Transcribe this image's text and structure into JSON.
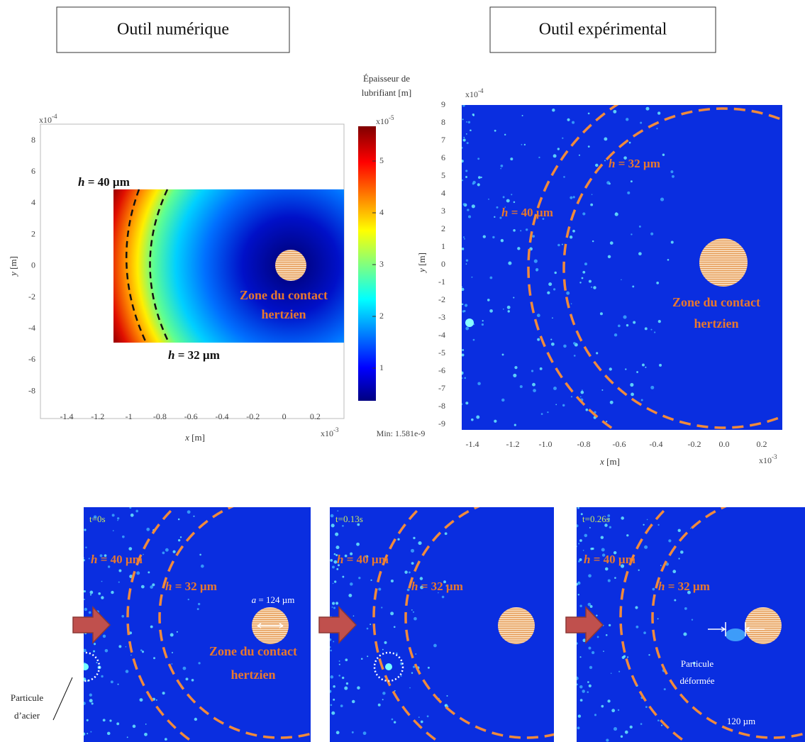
{
  "headers": {
    "numerical": "Outil numérique",
    "experimental": "Outil expérimental"
  },
  "numerical_plot": {
    "y_scale": {
      "base": "x10",
      "exp": "-4"
    },
    "x_scale": {
      "base": "x10",
      "exp": "-3"
    },
    "yticks": [
      "8",
      "6",
      "4",
      "2",
      "0",
      "-2",
      "-4",
      "-6",
      "-8"
    ],
    "xticks": [
      "-1.4",
      "-1.2",
      "-1",
      "-0.8",
      "-0.6",
      "-0.4",
      "-0.2",
      "0",
      "0.2"
    ],
    "x_label": {
      "var": "x",
      "unit": "[m]"
    },
    "y_label": {
      "var": "y",
      "unit": "[m]"
    },
    "h40": {
      "var": "h",
      "text": "= 40 µm"
    },
    "h32": {
      "var": "h",
      "text": "= 32 µm"
    },
    "zone": [
      "Zone du contact",
      "hertzien"
    ],
    "colorbar": {
      "title": [
        "Épaisseur de",
        "lubrifiant [m]"
      ],
      "scale": {
        "base": "x10",
        "exp": "-5"
      },
      "ticks": [
        "5",
        "4",
        "3",
        "2",
        "1"
      ],
      "min": "Min: 1.581e-9"
    }
  },
  "experimental_plot": {
    "y_scale": {
      "base": "x10",
      "exp": "-4"
    },
    "x_scale": {
      "base": "x10",
      "exp": "-3"
    },
    "yticks": [
      "9",
      "8",
      "7",
      "6",
      "5",
      "4",
      "3",
      "2",
      "1",
      "0",
      "-1",
      "-2",
      "-3",
      "-4",
      "-5",
      "-6",
      "-7",
      "-8",
      "-9"
    ],
    "xticks": [
      "-1.4",
      "-1.2",
      "-1.0",
      "-0.8",
      "-0.6",
      "-0.4",
      "-0.2",
      "0.0",
      "0.2"
    ],
    "x_label": {
      "var": "x",
      "unit": "[m]"
    },
    "y_label": {
      "var": "y",
      "unit": "[m]"
    },
    "h40": {
      "var": "h",
      "text": "= 40 µm"
    },
    "h32": {
      "var": "h",
      "text": "= 32 µm"
    },
    "zone": [
      "Zone du contact",
      "hertzien"
    ]
  },
  "frames": [
    {
      "time": "t=0s",
      "h40": {
        "var": "h",
        "text": "= 40 µm"
      },
      "h32": {
        "var": "h",
        "text": "= 32 µm"
      },
      "radius": {
        "var": "a",
        "text": "= 124 µm"
      },
      "zone": [
        "Zone du contact",
        "hertzien"
      ],
      "particle": [
        "Particule",
        "d’acier"
      ]
    },
    {
      "time": "t=0.13s",
      "h40": {
        "var": "h",
        "text": "= 40 µm"
      },
      "h32": {
        "var": "h",
        "text": "= 32 µm"
      }
    },
    {
      "time": "t=0.26s",
      "h40": {
        "var": "h",
        "text": "= 40 µm"
      },
      "h32": {
        "var": "h",
        "text": "= 32 µm"
      },
      "particle": [
        "Particule",
        "déformée"
      ],
      "size": "120 µm"
    }
  ]
}
